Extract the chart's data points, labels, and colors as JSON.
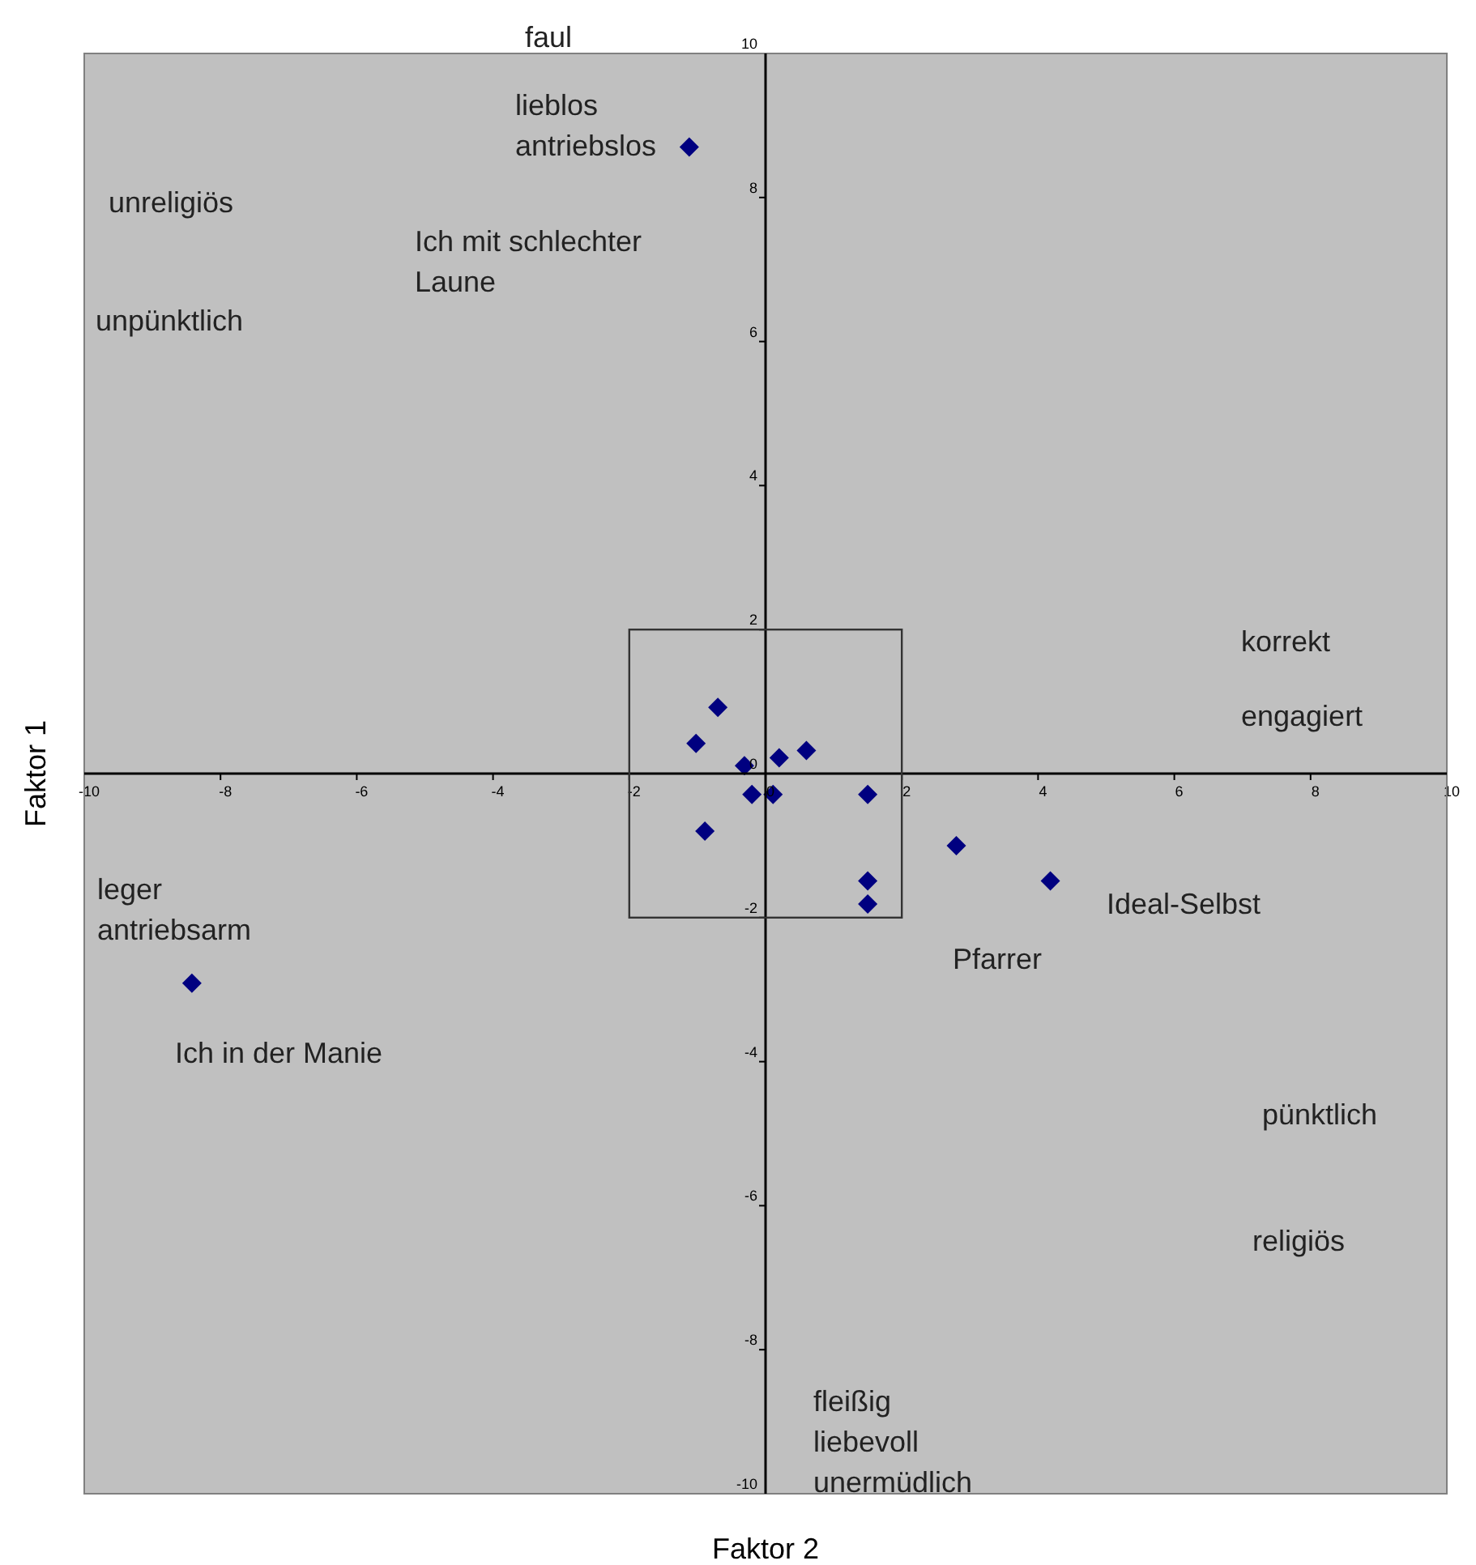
{
  "chart_data": {
    "type": "scatter",
    "xlabel": "Faktor 2",
    "ylabel": "Faktor 1",
    "x": [
      -0.7,
      -1.02,
      -0.31,
      0.2,
      0.6,
      -0.2,
      0.11,
      1.5,
      -0.89,
      2.8,
      4.18,
      1.5,
      1.5,
      -1.12,
      -8.42
    ],
    "values": [
      0.92,
      0.42,
      0.11,
      0.22,
      0.32,
      -0.29,
      -0.29,
      -0.29,
      -0.8,
      -1.0,
      -1.49,
      -1.49,
      -1.81,
      8.7,
      -2.91
    ],
    "color": "#000080",
    "marker": "diamond",
    "grid": false,
    "xlim": [
      -10,
      10
    ],
    "xticks": [
      -10,
      -8,
      -6,
      -4,
      -2,
      0,
      2,
      4,
      6,
      8,
      10
    ],
    "ylim": [
      -10,
      10
    ],
    "yticks": [
      -10,
      -8,
      -6,
      -4,
      -2,
      0,
      2,
      4,
      6,
      8,
      10
    ],
    "annotations": [
      "faul",
      "lieblos\nantriebslos",
      "Ich mit schlechter\nLaune",
      "unreligiös",
      "unpünktlich",
      "korrekt",
      "engagiert",
      "leger\nantriebsarm",
      "Ich in der Manie",
      "Pfarrer",
      "Ideal-Selbst",
      "pünktlich",
      "religiös",
      "fleißig\nliebevoll\nunermüdlich"
    ]
  }
}
